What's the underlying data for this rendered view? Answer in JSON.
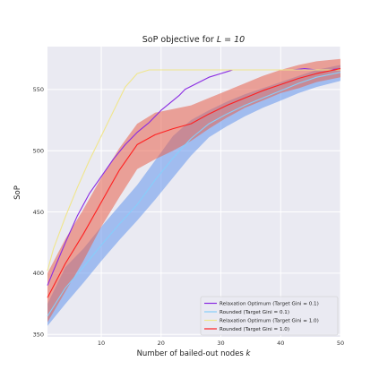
{
  "chart_data": {
    "type": "line",
    "title_prefix": "SoP objective for ",
    "title_math": "L = 10",
    "xlabel_prefix": "Number of bailed-out nodes ",
    "xlabel_math": "k",
    "ylabel": "SoP",
    "xlim": [
      1,
      50
    ],
    "ylim": [
      348,
      585
    ],
    "xticks": [
      10,
      20,
      30,
      40,
      50
    ],
    "yticks": [
      350,
      400,
      450,
      500,
      550
    ],
    "grid": true,
    "background": "#eaeaf2",
    "legend_position": "lower right",
    "series": [
      {
        "name": "Relaxation Optimum (Target Gini = 0.1)",
        "color": "#8a2be2",
        "x": [
          1,
          2,
          4,
          6,
          8,
          10,
          12,
          14,
          16,
          18,
          20,
          22,
          23,
          24,
          26,
          28,
          30,
          32,
          34,
          36,
          38,
          40,
          42,
          44,
          46,
          48,
          50
        ],
        "y": [
          390,
          402,
          425,
          447,
          465,
          479,
          493,
          505,
          515,
          523,
          533,
          541,
          545,
          550,
          555,
          560,
          563,
          566,
          566,
          566,
          566,
          566,
          566,
          567,
          566,
          566,
          567
        ]
      },
      {
        "name": "Rounded (Target Gini = 0.1)",
        "color": "#87cefa",
        "x": [
          1,
          4,
          7,
          10,
          13,
          16,
          19,
          22,
          25,
          28,
          31,
          34,
          37,
          40,
          43,
          46,
          50
        ],
        "y": [
          365,
          388,
          405,
          423,
          440,
          456,
          476,
          494,
          510,
          522,
          530,
          537,
          543,
          549,
          555,
          560,
          564
        ],
        "band_low": [
          357,
          375,
          392,
          410,
          427,
          443,
          460,
          478,
          496,
          511,
          520,
          528,
          535,
          541,
          547,
          552,
          557
        ],
        "band_high": [
          375,
          405,
          420,
          438,
          455,
          472,
          492,
          512,
          525,
          533,
          540,
          546,
          551,
          556,
          561,
          566,
          570
        ]
      },
      {
        "name": "Relaxation Optimum (Target Gini = 1.0)",
        "color": "#f0e68c",
        "x": [
          1,
          2,
          4,
          6,
          8,
          10,
          12,
          14,
          16,
          18,
          20,
          22,
          24,
          26,
          28,
          30,
          32,
          34,
          36,
          38,
          40,
          42,
          44,
          46,
          48,
          50
        ],
        "y": [
          402,
          420,
          446,
          470,
          492,
          512,
          532,
          552,
          563,
          566,
          566,
          566,
          566,
          566,
          566,
          566,
          566,
          566,
          566,
          566,
          566,
          566,
          566,
          566,
          566,
          566
        ]
      },
      {
        "name": "Rounded (Target Gini = 1.0)",
        "color": "#ff2020",
        "x": [
          1,
          4,
          7,
          10,
          13,
          16,
          19,
          22,
          25,
          28,
          31,
          34,
          37,
          40,
          43,
          46,
          50
        ],
        "y": [
          380,
          408,
          432,
          458,
          484,
          505,
          513,
          518,
          522,
          530,
          537,
          543,
          549,
          554,
          559,
          563,
          567
        ],
        "band_low": [
          360,
          385,
          410,
          438,
          462,
          485,
          493,
          500,
          508,
          518,
          527,
          535,
          541,
          547,
          551,
          556,
          560
        ],
        "band_high": [
          400,
          428,
          452,
          478,
          502,
          522,
          531,
          534,
          537,
          543,
          549,
          555,
          561,
          566,
          570,
          573,
          575
        ]
      }
    ]
  }
}
